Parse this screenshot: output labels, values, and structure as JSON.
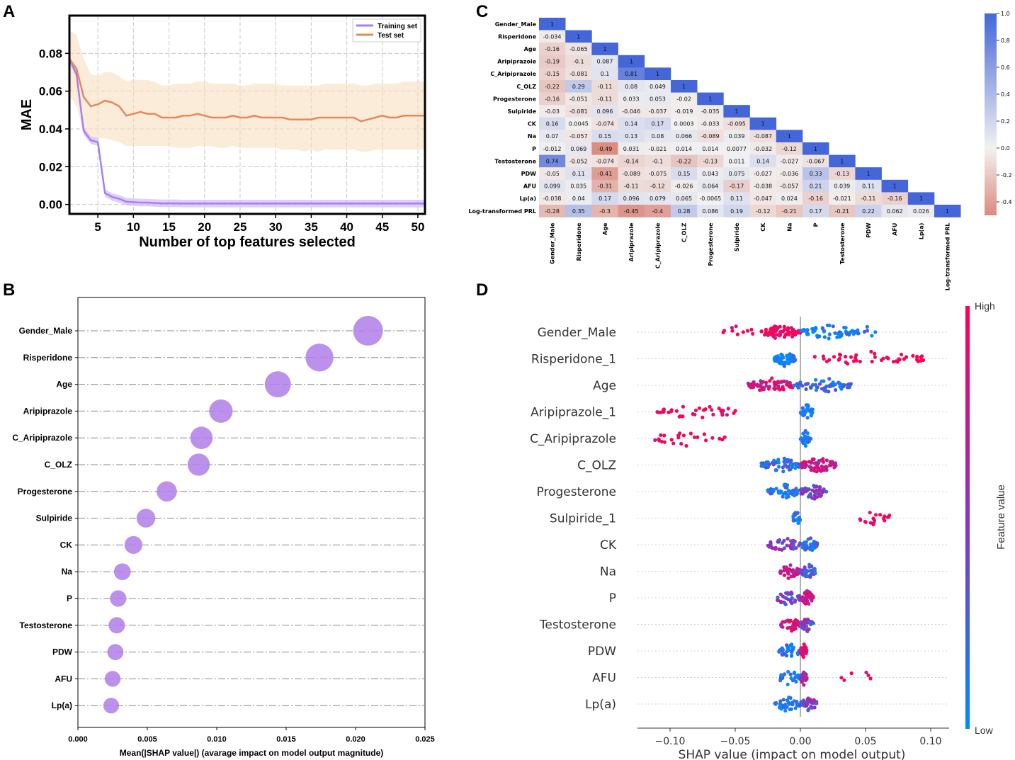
{
  "panels": {
    "a": "A",
    "b": "B",
    "c": "C",
    "d": "D"
  },
  "chart_data": [
    {
      "type": "line",
      "panel": "A",
      "title": "",
      "xlabel": "Number of top features selected",
      "ylabel": "MAE",
      "xlim": [
        1,
        51
      ],
      "ylim": [
        -0.005,
        0.1
      ],
      "xticks": [
        "5",
        "10",
        "15",
        "20",
        "25",
        "30",
        "35",
        "40",
        "45",
        "50"
      ],
      "yticks": [
        "0.00",
        "0.02",
        "0.04",
        "0.06",
        "0.08"
      ],
      "legend": [
        "Training set",
        "Test set"
      ],
      "legend_position": "top-right",
      "series": [
        {
          "name": "Training set",
          "color": "#a97ef0",
          "values": [
            0.077,
            0.069,
            0.039,
            0.034,
            0.033,
            0.006,
            0.004,
            0.003,
            0.0015,
            0.0012,
            0.001,
            0.001,
            0.0008,
            0.0006,
            0.0006,
            0.0006,
            0.0005,
            0.0005,
            0.0005,
            0.0005,
            0.0005,
            0.0005,
            0.0005,
            0.0005,
            0.0005,
            0.0005,
            0.0005,
            0.0005,
            0.0005,
            0.0005,
            0.0005,
            0.0005,
            0.0005,
            0.0005,
            0.0005,
            0.0005,
            0.0005,
            0.0005,
            0.0005,
            0.0005,
            0.0005,
            0.0005,
            0.0005,
            0.0005,
            0.0005,
            0.0005,
            0.0005,
            0.0005,
            0.0005,
            0.0005,
            0.0005
          ],
          "band": 0.002
        },
        {
          "name": "Test set",
          "color": "#e8875a",
          "values": [
            0.077,
            0.072,
            0.057,
            0.052,
            0.053,
            0.055,
            0.054,
            0.052,
            0.047,
            0.048,
            0.049,
            0.048,
            0.048,
            0.046,
            0.046,
            0.046,
            0.047,
            0.047,
            0.048,
            0.047,
            0.046,
            0.046,
            0.046,
            0.047,
            0.046,
            0.046,
            0.047,
            0.046,
            0.046,
            0.046,
            0.046,
            0.045,
            0.045,
            0.045,
            0.045,
            0.046,
            0.046,
            0.046,
            0.046,
            0.046,
            0.046,
            0.044,
            0.045,
            0.046,
            0.047,
            0.046,
            0.046,
            0.047,
            0.047,
            0.047,
            0.047
          ],
          "lower": [
            0.058,
            0.052,
            0.038,
            0.035,
            0.035,
            0.035,
            0.034,
            0.033,
            0.031,
            0.031,
            0.031,
            0.031,
            0.031,
            0.031,
            0.031,
            0.03,
            0.03,
            0.03,
            0.031,
            0.031,
            0.031,
            0.03,
            0.03,
            0.031,
            0.03,
            0.03,
            0.03,
            0.03,
            0.03,
            0.03,
            0.029,
            0.029,
            0.029,
            0.028,
            0.029,
            0.028,
            0.029,
            0.029,
            0.029,
            0.029,
            0.029,
            0.028,
            0.028,
            0.029,
            0.029,
            0.029,
            0.029,
            0.029,
            0.029,
            0.029,
            0.029
          ],
          "upper": [
            0.092,
            0.09,
            0.077,
            0.069,
            0.068,
            0.07,
            0.07,
            0.068,
            0.065,
            0.066,
            0.066,
            0.066,
            0.065,
            0.063,
            0.063,
            0.064,
            0.064,
            0.064,
            0.065,
            0.065,
            0.064,
            0.064,
            0.064,
            0.064,
            0.063,
            0.063,
            0.064,
            0.064,
            0.064,
            0.064,
            0.063,
            0.063,
            0.063,
            0.063,
            0.063,
            0.063,
            0.064,
            0.064,
            0.064,
            0.064,
            0.064,
            0.063,
            0.063,
            0.064,
            0.064,
            0.064,
            0.064,
            0.065,
            0.065,
            0.065,
            0.065
          ]
        }
      ]
    },
    {
      "type": "heatmap",
      "panel": "C",
      "title": "",
      "labels": [
        "Gender_Male",
        "Risperidone",
        "Age",
        "Aripiprazole",
        "C_Aripiprazole",
        "C_OLZ",
        "Progesterone",
        "Sulpiride",
        "CK",
        "Na",
        "P",
        "Testosterone",
        "PDW",
        "AFU",
        "Lp(a)",
        "Log-transformed PRL"
      ],
      "matrix": [
        [
          "1"
        ],
        [
          "-0.034",
          "1"
        ],
        [
          "-0.16",
          "-0.065",
          "1"
        ],
        [
          "-0.19",
          "-0.1",
          "0.087",
          "1"
        ],
        [
          "-0.15",
          "-0.081",
          "0.1",
          "0.81",
          "1"
        ],
        [
          "-0.22",
          "0.29",
          "-0.11",
          "0.08",
          "0.049",
          "1"
        ],
        [
          "-0.16",
          "-0.051",
          "-0.11",
          "0.033",
          "0.053",
          "-0.02",
          "1"
        ],
        [
          "-0.03",
          "-0.081",
          "0.096",
          "-0.046",
          "-0.037",
          "-0.019",
          "-0.035",
          "1"
        ],
        [
          "0.16",
          "0.0045",
          "-0.074",
          "0.14",
          "0.17",
          "0.0003",
          "-0.033",
          "-0.095",
          "1"
        ],
        [
          "0.07",
          "-0.057",
          "0.15",
          "0.13",
          "0.08",
          "0.066",
          "-0.089",
          "0.039",
          "-0.087",
          "1"
        ],
        [
          "-0.012",
          "0.069",
          "-0.49",
          "0.031",
          "-0.021",
          "0.014",
          "0.014",
          "0.0077",
          "-0.032",
          "-0.12",
          "1"
        ],
        [
          "0.74",
          "-0.052",
          "-0.074",
          "-0.14",
          "-0.1",
          "-0.22",
          "-0.13",
          "0.011",
          "0.14",
          "-0.027",
          "-0.067",
          "1"
        ],
        [
          "-0.05",
          "0.11",
          "-0.41",
          "-0.089",
          "-0.075",
          "0.15",
          "0.043",
          "0.075",
          "-0.027",
          "-0.036",
          "0.33",
          "-0.13",
          "1"
        ],
        [
          "0.099",
          "0.035",
          "-0.31",
          "-0.11",
          "-0.12",
          "-0.026",
          "0.064",
          "-0.17",
          "-0.038",
          "-0.057",
          "0.21",
          "0.039",
          "0.11",
          "1"
        ],
        [
          "-0.038",
          "0.04",
          "0.17",
          "0.096",
          "0.079",
          "0.065",
          "-0.0065",
          "0.11",
          "-0.047",
          "0.024",
          "-0.16",
          "-0.021",
          "-0.11",
          "-0.16",
          "1"
        ],
        [
          "-0.28",
          "0.35",
          "-0.3",
          "-0.45",
          "-0.4",
          "0.28",
          "0.086",
          "0.19",
          "-0.12",
          "-0.21",
          "0.17",
          "-0.21",
          "0.22",
          "0.062",
          "0.026",
          "1"
        ]
      ],
      "colorbar": {
        "range": [
          -0.5,
          1.0
        ],
        "ticks": [
          "1.0",
          "0.8",
          "0.6",
          "0.4",
          "0.2",
          "0.0",
          "-0.2",
          "-0.4"
        ]
      }
    },
    {
      "type": "scatter",
      "panel": "B",
      "title": "",
      "xlabel": "Mean(|SHAP value|) (avarage impact on model output magnitude)",
      "ylabel": "",
      "xlim": [
        0,
        0.025
      ],
      "xticks": [
        "0.000",
        "0.005",
        "0.010",
        "0.015",
        "0.020",
        "0.025"
      ],
      "categories": [
        "Gender_Male",
        "Risperidone",
        "Age",
        "Aripiprazole",
        "C_Aripiprazole",
        "C_OLZ",
        "Progesterone",
        "Sulpiride",
        "CK",
        "Na",
        "P",
        "Testosterone",
        "PDW",
        "AFU",
        "Lp(a)"
      ],
      "values": [
        0.0209,
        0.0174,
        0.0144,
        0.0103,
        0.0089,
        0.0087,
        0.0064,
        0.0049,
        0.004,
        0.0032,
        0.0029,
        0.0028,
        0.0027,
        0.0025,
        0.0024
      ],
      "color": "#b07ee8"
    },
    {
      "type": "scatter",
      "panel": "D",
      "title": "",
      "xlabel": "SHAP value (impact on model output)",
      "ylabel": "",
      "xlim": [
        -0.125,
        0.11
      ],
      "xticks": [
        "−0.10",
        "−0.05",
        "0.00",
        "0.05",
        "0.10"
      ],
      "categories": [
        "Gender_Male",
        "Risperidone_1",
        "Age",
        "Aripiprazole_1",
        "C_Aripiprazole",
        "C_OLZ",
        "Progesterone",
        "Sulpiride_1",
        "CK",
        "Na",
        "P",
        "Testosterone",
        "PDW",
        "AFU",
        "Lp(a)"
      ],
      "colorbar": {
        "title": "Feature value",
        "high": "High",
        "low": "Low",
        "high_color": "#ff0052",
        "low_color": "#008bfb"
      },
      "clusters": [
        [
          [
            -0.03,
            0.0,
            0.95,
            70
          ],
          [
            0.0,
            0.045,
            0.05,
            60
          ],
          [
            -0.06,
            -0.035,
            1.0,
            10
          ],
          [
            0.045,
            0.058,
            0.1,
            5
          ]
        ],
        [
          [
            -0.02,
            -0.004,
            0.0,
            55
          ],
          [
            0.01,
            0.1,
            1.0,
            45
          ]
        ],
        [
          [
            -0.04,
            -0.005,
            0.85,
            60
          ],
          [
            -0.005,
            0.04,
            0.2,
            60
          ]
        ],
        [
          [
            -0.11,
            -0.048,
            1.0,
            35
          ],
          [
            0.0,
            0.01,
            0.05,
            30
          ]
        ],
        [
          [
            -0.115,
            -0.058,
            1.0,
            25
          ],
          [
            0.0,
            0.008,
            0.05,
            30
          ]
        ],
        [
          [
            -0.03,
            0.0,
            0.2,
            60
          ],
          [
            0.0,
            0.028,
            0.75,
            70
          ]
        ],
        [
          [
            -0.025,
            0.0,
            0.1,
            50
          ],
          [
            0.0,
            0.02,
            0.45,
            50
          ]
        ],
        [
          [
            -0.006,
            0.0,
            0.05,
            18
          ],
          [
            0.045,
            0.07,
            1.0,
            18
          ]
        ],
        [
          [
            -0.025,
            0.0,
            0.45,
            40
          ],
          [
            0.0,
            0.013,
            0.2,
            40
          ]
        ],
        [
          [
            -0.017,
            0.0,
            0.75,
            40
          ],
          [
            0.0,
            0.012,
            0.3,
            35
          ]
        ],
        [
          [
            -0.02,
            0.0,
            0.4,
            35
          ],
          [
            0.0,
            0.01,
            0.75,
            40
          ]
        ],
        [
          [
            -0.015,
            0.0,
            0.85,
            35
          ],
          [
            0.0,
            0.01,
            0.4,
            35
          ]
        ],
        [
          [
            -0.017,
            0.0,
            0.1,
            35
          ],
          [
            0.0,
            0.005,
            0.9,
            35
          ]
        ],
        [
          [
            -0.017,
            0.0,
            0.1,
            30
          ],
          [
            0.0,
            0.005,
            0.6,
            30
          ],
          [
            0.03,
            0.06,
            0.95,
            6
          ]
        ],
        [
          [
            -0.02,
            0.0,
            0.1,
            35
          ],
          [
            0.0,
            0.013,
            0.45,
            35
          ]
        ]
      ]
    }
  ]
}
